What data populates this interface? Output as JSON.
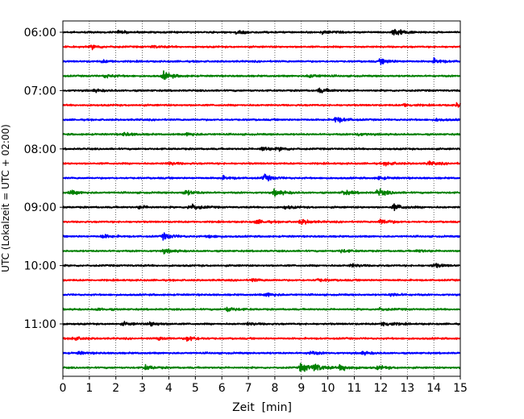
{
  "chart_data": {
    "type": "line",
    "title": "",
    "xlabel": "Zeit  [min]",
    "ylabel": "UTC (Lokalzeit = UTC + 02:00)",
    "xlim": [
      0,
      15
    ],
    "x_ticks": [
      "0",
      "1",
      "2",
      "3",
      "4",
      "5",
      "6",
      "7",
      "8",
      "9",
      "10",
      "11",
      "12",
      "13",
      "14",
      "15"
    ],
    "y_tick_labels": [
      "06:00",
      "07:00",
      "08:00",
      "09:00",
      "10:00",
      "11:00"
    ],
    "grid": "vertical dotted at each minute",
    "trace_colors": [
      "#000000",
      "#ff0000",
      "#0000ff",
      "#008000"
    ],
    "traces": [
      {
        "start": "06:00",
        "color": "#000000",
        "events": [
          [
            6.6,
            0.7
          ],
          [
            9.8,
            0.5
          ],
          [
            12.5,
            1.6
          ],
          [
            2.1,
            0.4
          ]
        ]
      },
      {
        "start": "06:15",
        "color": "#ff0000",
        "events": [
          [
            1.1,
            0.7
          ],
          [
            3.4,
            0.4
          ]
        ]
      },
      {
        "start": "06:30",
        "color": "#0000ff",
        "events": [
          [
            12.0,
            0.9
          ],
          [
            14.0,
            0.8
          ],
          [
            1.5,
            0.4
          ]
        ]
      },
      {
        "start": "06:45",
        "color": "#008000",
        "events": [
          [
            3.8,
            1.3
          ],
          [
            1.6,
            0.6
          ],
          [
            9.3,
            0.7
          ]
        ]
      },
      {
        "start": "07:00",
        "color": "#000000",
        "events": [
          [
            9.7,
            0.8
          ],
          [
            1.2,
            0.4
          ]
        ]
      },
      {
        "start": "07:15",
        "color": "#ff0000",
        "events": [
          [
            14.9,
            1.0
          ],
          [
            12.9,
            0.5
          ]
        ]
      },
      {
        "start": "07:30",
        "color": "#0000ff",
        "events": [
          [
            10.3,
            1.1
          ],
          [
            14.1,
            0.4
          ]
        ]
      },
      {
        "start": "07:45",
        "color": "#008000",
        "events": [
          [
            2.3,
            0.6
          ],
          [
            4.7,
            0.6
          ],
          [
            11.1,
            0.5
          ]
        ]
      },
      {
        "start": "08:00",
        "color": "#000000",
        "events": [
          [
            7.5,
            0.9
          ],
          [
            8.2,
            0.5
          ]
        ]
      },
      {
        "start": "08:15",
        "color": "#ff0000",
        "events": [
          [
            12.2,
            0.6
          ],
          [
            13.8,
            0.6
          ],
          [
            4.0,
            0.5
          ]
        ]
      },
      {
        "start": "08:30",
        "color": "#0000ff",
        "events": [
          [
            7.6,
            1.1
          ],
          [
            6.0,
            0.6
          ],
          [
            11.9,
            0.5
          ]
        ]
      },
      {
        "start": "08:45",
        "color": "#008000",
        "events": [
          [
            8.0,
            1.1
          ],
          [
            11.9,
            1.3
          ],
          [
            10.6,
            0.8
          ],
          [
            0.3,
            0.7
          ],
          [
            4.6,
            0.9
          ]
        ]
      },
      {
        "start": "09:00",
        "color": "#000000",
        "events": [
          [
            4.8,
            1.2
          ],
          [
            12.5,
            1.1
          ],
          [
            2.9,
            0.5
          ],
          [
            8.4,
            0.5
          ]
        ]
      },
      {
        "start": "09:15",
        "color": "#ff0000",
        "events": [
          [
            9.0,
            0.9
          ],
          [
            12.0,
            1.0
          ],
          [
            7.3,
            0.7
          ]
        ]
      },
      {
        "start": "09:30",
        "color": "#0000ff",
        "events": [
          [
            3.8,
            1.1
          ],
          [
            1.5,
            0.6
          ],
          [
            5.5,
            0.5
          ]
        ]
      },
      {
        "start": "09:45",
        "color": "#008000",
        "events": [
          [
            3.8,
            0.7
          ],
          [
            10.5,
            0.5
          ],
          [
            13.4,
            0.4
          ]
        ]
      },
      {
        "start": "10:00",
        "color": "#000000",
        "events": [
          [
            14.0,
            0.7
          ],
          [
            10.9,
            0.5
          ]
        ]
      },
      {
        "start": "10:15",
        "color": "#ff0000",
        "events": [
          [
            7.1,
            0.5
          ],
          [
            9.6,
            0.5
          ]
        ]
      },
      {
        "start": "10:30",
        "color": "#0000ff",
        "events": [
          [
            7.7,
            0.7
          ],
          [
            12.4,
            0.5
          ]
        ]
      },
      {
        "start": "10:45",
        "color": "#008000",
        "events": [
          [
            6.2,
            0.8
          ],
          [
            11.9,
            0.5
          ],
          [
            1.3,
            0.4
          ]
        ]
      },
      {
        "start": "11:00",
        "color": "#000000",
        "events": [
          [
            3.3,
            0.8
          ],
          [
            12.1,
            1.0
          ],
          [
            2.3,
            0.5
          ],
          [
            7.0,
            0.4
          ]
        ]
      },
      {
        "start": "11:15",
        "color": "#ff0000",
        "events": [
          [
            4.7,
            1.0
          ],
          [
            0.4,
            0.6
          ],
          [
            3.6,
            0.6
          ]
        ]
      },
      {
        "start": "11:30",
        "color": "#0000ff",
        "events": [
          [
            9.3,
            0.6
          ],
          [
            11.3,
            0.5
          ],
          [
            0.6,
            0.4
          ]
        ]
      },
      {
        "start": "11:45",
        "color": "#008000",
        "events": [
          [
            9.0,
            1.7
          ],
          [
            9.5,
            1.2
          ],
          [
            10.5,
            1.2
          ],
          [
            3.1,
            0.8
          ],
          [
            11.9,
            0.6
          ]
        ]
      }
    ]
  }
}
